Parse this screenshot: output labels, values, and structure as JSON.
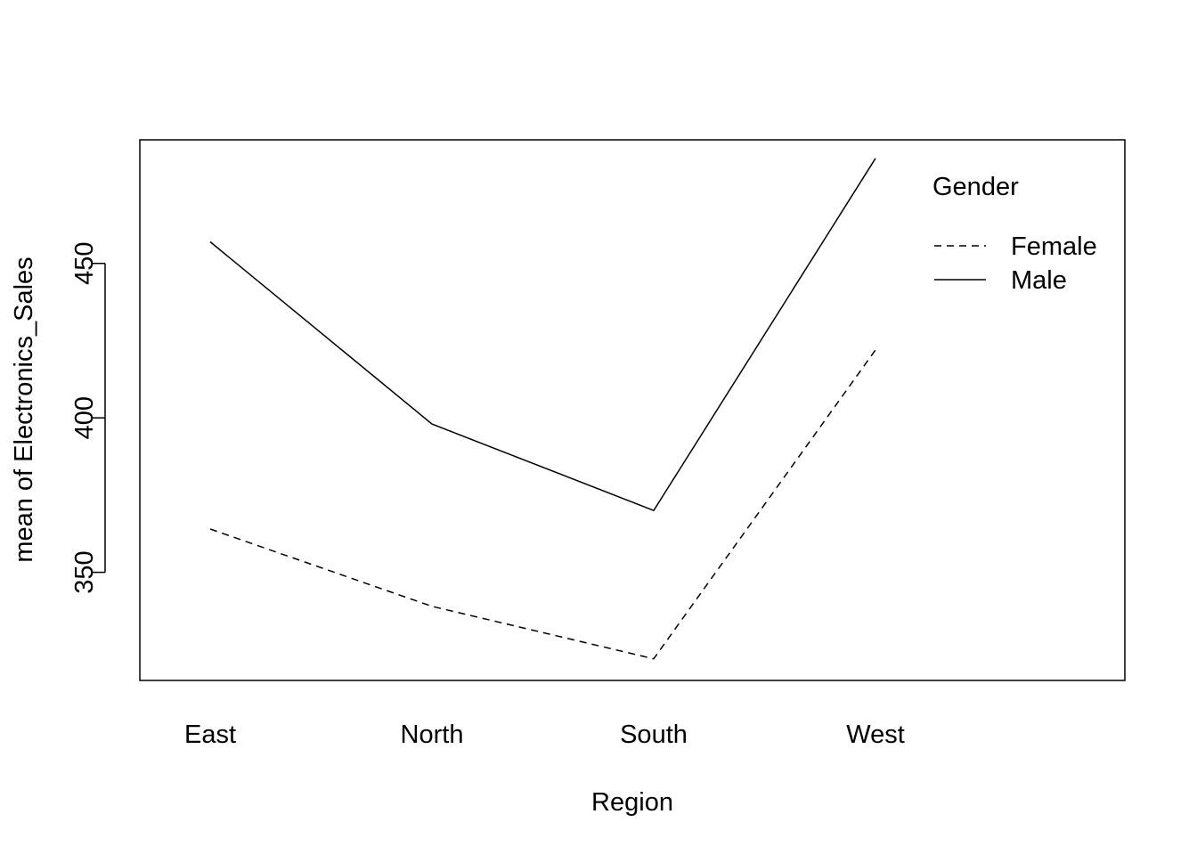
{
  "chart_data": {
    "type": "line",
    "title": "",
    "xlabel": "Region",
    "ylabel": "mean of  Electronics_Sales",
    "categories": [
      "East",
      "North",
      "South",
      "West"
    ],
    "ylim": [
      315,
      490
    ],
    "yticks": [
      350,
      400,
      450
    ],
    "grid": false,
    "legend": {
      "title": "Gender",
      "placement": "top-right",
      "entries": [
        "Female",
        "Male"
      ]
    },
    "series": [
      {
        "name": "Female",
        "line_style": "dashed",
        "color": "#000000",
        "values": [
          364,
          339,
          322,
          422
        ]
      },
      {
        "name": "Male",
        "line_style": "solid",
        "color": "#000000",
        "values": [
          457,
          398,
          370,
          484
        ]
      }
    ]
  }
}
